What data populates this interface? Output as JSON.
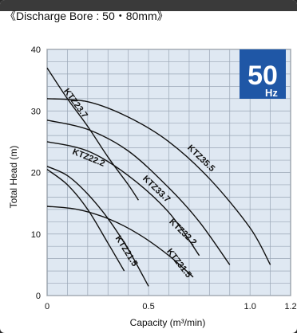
{
  "header": {
    "title": "《Discharge Bore : 50・80mm》"
  },
  "badge": {
    "value": "50",
    "unit": "Hz",
    "color": "#1f57a6"
  },
  "chart_data": {
    "type": "line",
    "xlabel": "Capacity (m³/min)",
    "ylabel": "Total Head (m)",
    "xlim": [
      0,
      1.2
    ],
    "ylim": [
      0,
      40
    ],
    "x_ticks": [
      "0",
      "0.5",
      "1.0",
      "1.2"
    ],
    "x_tick_values": [
      0,
      0.5,
      1.0,
      1.2
    ],
    "y_ticks": [
      "0",
      "10",
      "20",
      "30",
      "40"
    ],
    "y_tick_values": [
      0,
      10,
      20,
      30,
      40
    ],
    "grid": true,
    "grid_step_x": 0.1,
    "grid_step_y": 2,
    "colors": {
      "plot_bg": "#dfe8f2",
      "grid": "#9aa6b5",
      "curve": "#111111"
    },
    "series": [
      {
        "name": "KTZ23.7",
        "x": [
          0,
          0.1,
          0.2,
          0.3,
          0.4,
          0.45
        ],
        "y": [
          37,
          32,
          27.5,
          22.5,
          18,
          15.5
        ]
      },
      {
        "name": "KTZ35.5",
        "x": [
          0,
          0.2,
          0.4,
          0.6,
          0.8,
          1.0,
          1.1
        ],
        "y": [
          32,
          31.5,
          29,
          25,
          19,
          11,
          5
        ]
      },
      {
        "name": "KTZ33.7",
        "x": [
          0,
          0.2,
          0.4,
          0.6,
          0.75,
          0.9
        ],
        "y": [
          28.5,
          27,
          23.5,
          17.5,
          12,
          5
        ]
      },
      {
        "name": "KTZ22.2",
        "x": [
          0,
          0.1,
          0.2,
          0.3,
          0.4,
          0.5
        ],
        "y": [
          21,
          19.5,
          16.5,
          12.5,
          7.5,
          1.5
        ]
      },
      {
        "name": "KTZ32.2",
        "x": [
          0,
          0.2,
          0.4,
          0.6,
          0.75
        ],
        "y": [
          25,
          23.5,
          19.5,
          13.5,
          6.5
        ]
      },
      {
        "name": "KTZ21.5",
        "x": [
          0,
          0.1,
          0.2,
          0.3,
          0.38
        ],
        "y": [
          20.5,
          18,
          14,
          8.5,
          4
        ]
      },
      {
        "name": "KTZ31.5",
        "x": [
          0,
          0.15,
          0.3,
          0.45,
          0.6,
          0.72
        ],
        "y": [
          14.5,
          14,
          12.5,
          10,
          6.5,
          3
        ]
      }
    ],
    "labels": [
      {
        "text": "KTZ23.7",
        "x": 0.13,
        "y": 31,
        "angle": 54
      },
      {
        "text": "KTZ35.5",
        "x": 0.75,
        "y": 22,
        "angle": 44
      },
      {
        "text": "KTZ33.7",
        "x": 0.53,
        "y": 17,
        "angle": 44
      },
      {
        "text": "KTZ22.2",
        "x": 0.2,
        "y": 22,
        "angle": 22
      },
      {
        "text": "KTZ32.2",
        "x": 0.66,
        "y": 10,
        "angle": 44
      },
      {
        "text": "KTZ21.5",
        "x": 0.38,
        "y": 7,
        "angle": 58
      },
      {
        "text": "KTZ31.5",
        "x": 0.64,
        "y": 5,
        "angle": 52
      }
    ]
  }
}
